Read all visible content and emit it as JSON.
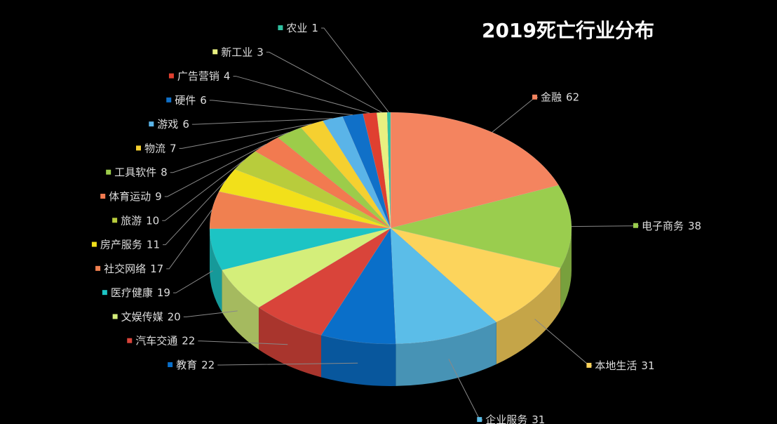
{
  "chart_data": {
    "type": "pie3d",
    "title": "2019死亡行业分布",
    "categories": [
      "金融",
      "电子商务",
      "本地生活",
      "企业服务",
      "教育",
      "汽车交通",
      "文娱传媒",
      "医疗健康",
      "社交网络",
      "房产服务",
      "旅游",
      "体育运动",
      "工具软件",
      "物流",
      "游戏",
      "硬件",
      "广告营销",
      "新工业",
      "农业"
    ],
    "values": [
      62,
      38,
      31,
      31,
      22,
      22,
      20,
      19,
      17,
      11,
      10,
      9,
      8,
      7,
      6,
      6,
      4,
      3,
      1
    ],
    "colors": [
      "#f4845f",
      "#9acd4e",
      "#fcd45c",
      "#5bbde8",
      "#0a6fc9",
      "#d9443a",
      "#d4ee7a",
      "#1cc4c4",
      "#f08050",
      "#f2e01a",
      "#b8cc3c",
      "#f27a50",
      "#9ccc4a",
      "#f5d030",
      "#5ab4e8",
      "#1070c8",
      "#e04030",
      "#e8f080",
      "#30c0a0"
    ]
  }
}
